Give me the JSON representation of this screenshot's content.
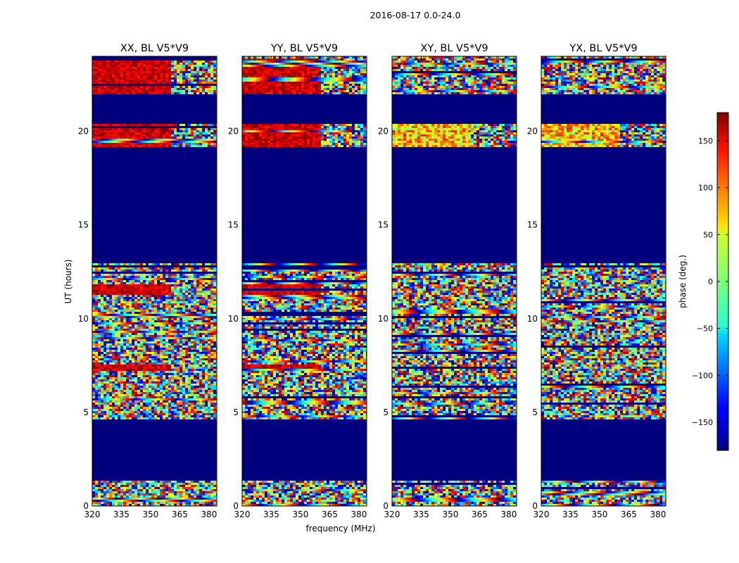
{
  "figure_title": "2016-08-17 0.0-24.0",
  "chart_data": {
    "type": "heatmap",
    "suptitle": "2016-08-17 0.0-24.0",
    "xlabel": "frequency (MHz)",
    "ylabel": "UT (hours)",
    "xlim": [
      320,
      384
    ],
    "ylim": [
      0,
      24
    ],
    "xticks": [
      320,
      335,
      350,
      365,
      380
    ],
    "yticks": [
      0,
      5,
      10,
      15,
      20
    ],
    "masked_ut_ranges_hours": [
      [
        1.4,
        4.6
      ],
      [
        13.0,
        19.1
      ],
      [
        20.4,
        22.0
      ]
    ],
    "panels": [
      {
        "title": "XX, BL V5*V9",
        "pol": "XX",
        "baseline": "V5*V9",
        "red_bias": true
      },
      {
        "title": "YY, BL V5*V9",
        "pol": "YY",
        "baseline": "V5*V9",
        "red_bias": true
      },
      {
        "title": "XY, BL V5*V9",
        "pol": "XY",
        "baseline": "V5*V9",
        "red_bias": false
      },
      {
        "title": "YX, BL V5*V9",
        "pol": "YX",
        "baseline": "V5*V9",
        "red_bias": false
      }
    ],
    "colorbar": {
      "label": "phase (deg.)",
      "range": [
        -180,
        180
      ],
      "ticks": [
        150,
        100,
        50,
        0,
        -50,
        -100,
        -150
      ],
      "tick_labels": [
        "150",
        "100",
        "50",
        "0",
        "−50",
        "−100",
        "−150"
      ],
      "colormap": "jet"
    }
  },
  "colors": {
    "masked": "#00007f",
    "axes": "#000000",
    "background": "#ffffff"
  }
}
